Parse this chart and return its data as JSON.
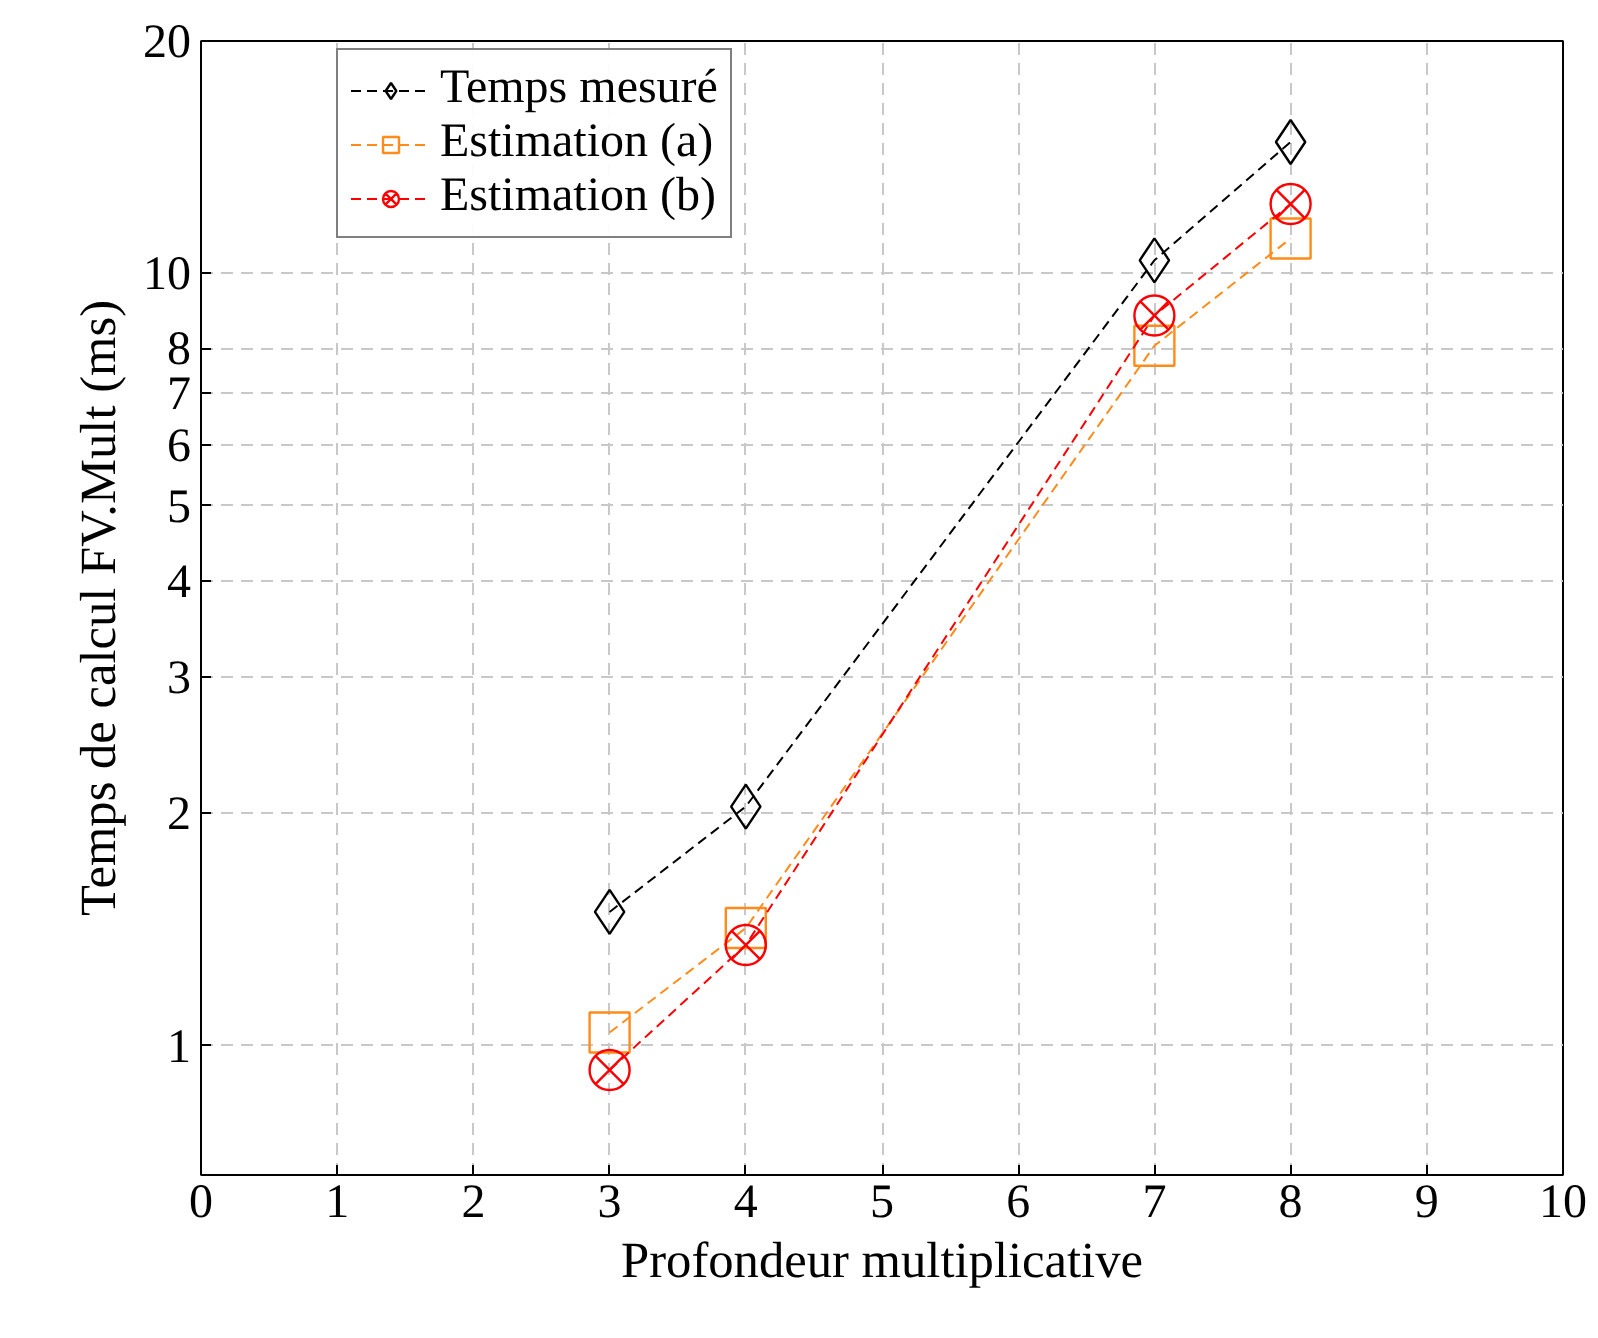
{
  "chart_data": {
    "type": "line",
    "xlabel": "Profondeur multiplicative",
    "ylabel": "Temps de calcul FV.Mult (ms)",
    "x": [
      3,
      4,
      7,
      8
    ],
    "series": [
      {
        "name": "Temps mesuré",
        "color": "#000000",
        "marker": "diamond",
        "values": [
          1.49,
          2.04,
          10.4,
          14.8
        ]
      },
      {
        "name": "Estimation (a)",
        "color": "#ff8c1a",
        "marker": "square",
        "values": [
          1.04,
          1.42,
          8.06,
          11.1
        ]
      },
      {
        "name": "Estimation (b)",
        "color": "#ff0000",
        "marker": "cross",
        "values": [
          0.93,
          1.35,
          8.82,
          12.3
        ]
      }
    ],
    "log": "y",
    "xlim": [
      0,
      10
    ],
    "xticks": [
      0,
      1,
      2,
      3,
      4,
      5,
      6,
      7,
      8,
      9,
      10
    ],
    "ylim": [
      0.68,
      20
    ],
    "yticks": [
      1,
      2,
      3,
      4,
      5,
      6,
      7,
      8,
      10,
      20
    ],
    "grid": true,
    "legend": "top left",
    "line_style": "dashed"
  }
}
